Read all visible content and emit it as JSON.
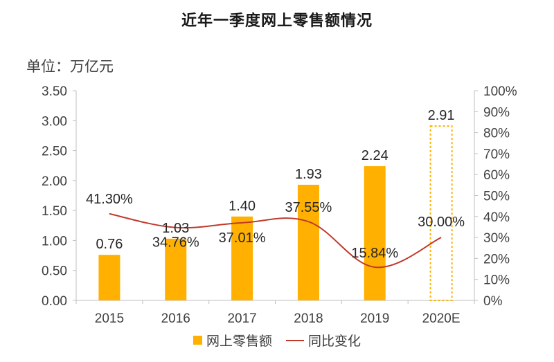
{
  "chart_data": {
    "type": "bar",
    "title": "近年一季度网上零售额情况",
    "unit_label": "单位：万亿元",
    "categories": [
      "2015",
      "2016",
      "2017",
      "2018",
      "2019",
      "2020E"
    ],
    "series": [
      {
        "name": "网上零售额",
        "type": "bar",
        "axis": "left",
        "values": [
          0.76,
          1.03,
          1.4,
          1.93,
          2.24,
          2.91
        ],
        "labels": [
          "0.76",
          "1.03",
          "1.40",
          "1.93",
          "2.24",
          "2.91"
        ],
        "estimated": [
          false,
          false,
          false,
          false,
          false,
          true
        ]
      },
      {
        "name": "同比变化",
        "type": "line",
        "axis": "right",
        "values": [
          41.3,
          34.76,
          37.01,
          37.55,
          15.84,
          30.0
        ],
        "labels": [
          "41.30%",
          "34.76%",
          "37.01%",
          "37.55%",
          "15.84%",
          "30.00%"
        ]
      }
    ],
    "ylim": [
      0,
      3.5
    ],
    "yticks": [
      "0.00",
      "0.50",
      "1.00",
      "1.50",
      "2.00",
      "2.50",
      "3.00",
      "3.50"
    ],
    "y2lim": [
      0,
      100
    ],
    "y2ticks": [
      "0%",
      "10%",
      "20%",
      "30%",
      "40%",
      "50%",
      "60%",
      "70%",
      "80%",
      "90%",
      "100%"
    ],
    "legend_position": "bottom",
    "grid": false,
    "colors": {
      "bar": "#FFB000",
      "line": "#C0392B",
      "axis": "#BFBFBF"
    }
  }
}
